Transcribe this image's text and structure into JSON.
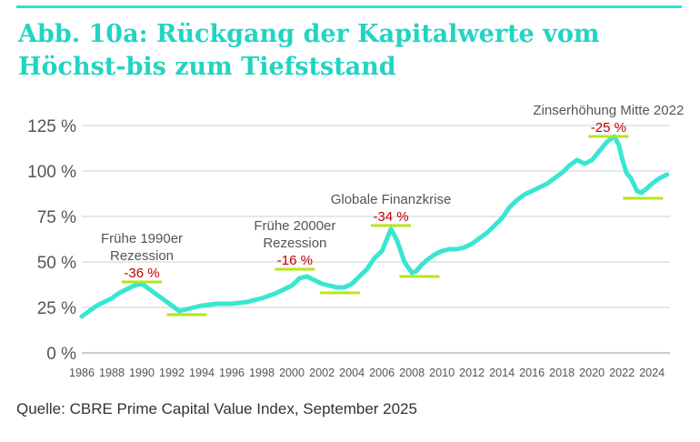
{
  "title": "Abb. 10a: Rückgang der Kapitalwerte vom Höchst-bis zum Tiefststand",
  "source": "Quelle: CBRE Prime Capital Value Index, September 2025",
  "colors": {
    "title": "#22d4c2",
    "line": "#38e6d2",
    "marker": "#b5e61d",
    "percent": "#c00000",
    "grid": "#cfcfcf"
  },
  "chart_data": {
    "type": "line",
    "ylim": [
      0,
      125
    ],
    "xlim": [
      1986,
      2025.2
    ],
    "y_ticks": [
      0,
      25,
      50,
      75,
      100,
      125
    ],
    "y_tick_labels": [
      "0 %",
      "25 %",
      "50 %",
      "75 %",
      "100 %",
      "125 %"
    ],
    "x_ticks": [
      1986,
      1988,
      1990,
      1992,
      1994,
      1996,
      1998,
      2000,
      2002,
      2004,
      2006,
      2008,
      2010,
      2012,
      2014,
      2016,
      2018,
      2020,
      2022,
      2024
    ],
    "grid": true,
    "series": [
      {
        "x": [
          1986,
          1986.5,
          1987,
          1987.5,
          1988,
          1988.5,
          1989,
          1989.5,
          1990,
          1990.5,
          1991,
          1991.5,
          1992,
          1992.5,
          1993,
          1993.5,
          1994,
          1995,
          1996,
          1997,
          1998,
          1999,
          2000,
          2000.5,
          2001,
          2001.5,
          2002,
          2002.5,
          2003,
          2003.5,
          2004,
          2004.5,
          2005,
          2005.5,
          2006,
          2006.3,
          2006.6,
          2007,
          2007.5,
          2008,
          2008.3,
          2008.6,
          2009,
          2009.5,
          2010,
          2010.5,
          2011,
          2011.5,
          2012,
          2012.5,
          2013,
          2013.5,
          2014,
          2014.5,
          2015,
          2015.5,
          2016,
          2016.5,
          2017,
          2017.5,
          2018,
          2018.5,
          2019,
          2019.5,
          2020,
          2020.5,
          2021,
          2021.5,
          2021.8,
          2022,
          2022.3,
          2022.6,
          2023,
          2023.3,
          2023.6,
          2024,
          2024.5,
          2025
        ],
        "y": [
          20,
          23,
          26,
          28,
          30,
          33,
          35,
          37,
          38,
          35,
          32,
          29,
          26,
          23,
          24,
          25,
          26,
          27,
          27,
          28,
          30,
          33,
          37,
          41,
          42,
          40,
          38,
          37,
          36,
          36,
          38,
          42,
          46,
          52,
          56,
          62,
          68,
          62,
          50,
          44,
          45,
          48,
          51,
          54,
          56,
          57,
          57,
          58,
          60,
          63,
          66,
          70,
          74,
          80,
          84,
          87,
          89,
          91,
          93,
          96,
          99,
          103,
          106,
          104,
          106,
          111,
          116,
          119,
          114,
          107,
          99,
          96,
          89,
          88,
          90,
          93,
          96,
          98
        ]
      }
    ],
    "annotations": [
      {
        "label": [
          "Frühe 1990er",
          "Rezession"
        ],
        "percent": "-36 %",
        "peak_year": 1990,
        "peak_value": 39,
        "trough_year": 1993,
        "trough_value": 21
      },
      {
        "label": [
          "Frühe 2000er",
          "Rezession"
        ],
        "percent": "-16 %",
        "peak_year": 2000.2,
        "peak_value": 46,
        "trough_year": 2003.2,
        "trough_value": 33
      },
      {
        "label": [
          "Globale Finanzkrise"
        ],
        "percent": "-34 %",
        "peak_year": 2006.6,
        "peak_value": 70,
        "trough_year": 2008.5,
        "trough_value": 42
      },
      {
        "label": [
          "Zinserhöhung Mitte 2022"
        ],
        "percent": "-25 %",
        "peak_year": 2021.1,
        "peak_value": 119,
        "trough_year": 2023.4,
        "trough_value": 85
      }
    ]
  }
}
